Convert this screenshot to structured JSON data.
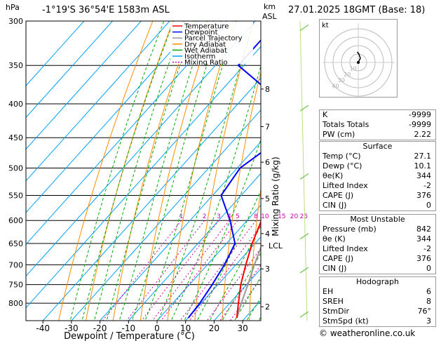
{
  "header": {
    "p_unit": "hPa",
    "location": "-1°19'S  36°54'E  1583m  ASL",
    "km_unit": "km",
    "asl": "ASL",
    "datetime": "27.01.2025  18GMT  (Base: 18)"
  },
  "legend": [
    {
      "label": "Temperature",
      "color": "#ff0000",
      "dash": ""
    },
    {
      "label": "Dewpoint",
      "color": "#0000ff",
      "dash": ""
    },
    {
      "label": "Parcel Trajectory",
      "color": "#999999",
      "dash": ""
    },
    {
      "label": "Dry Adiabat",
      "color": "#ff8c00",
      "dash": ""
    },
    {
      "label": "Wet Adiabat",
      "color": "#00aa00",
      "dash": ""
    },
    {
      "label": "Isotherm",
      "color": "#00a0ff",
      "dash": ""
    },
    {
      "label": "Mixing Ratio",
      "color": "#cc00aa",
      "dash": "2,2"
    }
  ],
  "chart_data": {
    "type": "skew-t log-p diagram",
    "xlabel": "Dewpoint / Temperature (°C)",
    "ylabel_left": "hPa",
    "ylabel_right": "Mixing Ratio (g/kg)",
    "x_ticks": [
      -40,
      -30,
      -20,
      -10,
      0,
      10,
      20,
      30
    ],
    "pressure_levels": [
      300,
      350,
      400,
      450,
      500,
      550,
      600,
      650,
      700,
      750,
      800
    ],
    "altitude_ticks": [
      {
        "km": "2",
        "p": 810
      },
      {
        "km": "3",
        "p": 710
      },
      {
        "km": "4",
        "p": 628
      },
      {
        "km": "5",
        "p": 556
      },
      {
        "km": "6",
        "p": 490
      },
      {
        "km": "7",
        "p": 433
      },
      {
        "km": "8",
        "p": 380
      }
    ],
    "lcl": {
      "label": "LCL",
      "p": 655
    },
    "mixing_ratio_labels": [
      "1",
      "2",
      "3",
      "4",
      "5",
      "8",
      "10",
      "15",
      "20",
      "25"
    ],
    "mixing_ratio_values": [
      1,
      2,
      3,
      4,
      5,
      8,
      10,
      15,
      20,
      25
    ],
    "temperature": [
      [
        842,
        27.1
      ],
      [
        800,
        23
      ],
      [
        750,
        18
      ],
      [
        700,
        13.5
      ],
      [
        650,
        9
      ],
      [
        600,
        5
      ],
      [
        550,
        0
      ],
      [
        500,
        -5
      ],
      [
        450,
        -10.5
      ],
      [
        400,
        -17
      ],
      [
        350,
        -26
      ],
      [
        300,
        -36
      ]
    ],
    "dewpoint": [
      [
        842,
        10.1
      ],
      [
        800,
        9.5
      ],
      [
        750,
        8
      ],
      [
        700,
        6
      ],
      [
        650,
        3
      ],
      [
        600,
        -6
      ],
      [
        550,
        -17
      ],
      [
        500,
        -19
      ],
      [
        450,
        -14
      ],
      [
        400,
        -24
      ],
      [
        350,
        -52
      ],
      [
        300,
        -52
      ]
    ],
    "parcel": [
      [
        842,
        27.1
      ],
      [
        800,
        24
      ],
      [
        750,
        20.5
      ],
      [
        700,
        16.5
      ],
      [
        655,
        13
      ],
      [
        600,
        7.5
      ],
      [
        550,
        2.5
      ],
      [
        500,
        -3
      ],
      [
        450,
        -9
      ],
      [
        400,
        -16
      ],
      [
        350,
        -24
      ],
      [
        300,
        -33
      ]
    ]
  },
  "hodograph": {
    "label": "kt",
    "ring_labels": [
      "10",
      "20",
      "30",
      "40"
    ],
    "trace": [
      [
        0,
        0
      ],
      [
        0.5,
        1
      ],
      [
        1,
        2
      ],
      [
        0.3,
        4
      ],
      [
        -0.5,
        5
      ]
    ]
  },
  "indices": [
    {
      "label": "K",
      "value": "-9999"
    },
    {
      "label": "Totals Totals",
      "value": "-9999"
    },
    {
      "label": "PW (cm)",
      "value": "2.22"
    }
  ],
  "surface": {
    "title": "Surface",
    "rows": [
      {
        "label": "Temp (°C)",
        "value": "27.1"
      },
      {
        "label": "Dewp (°C)",
        "value": "10.1"
      },
      {
        "label": "θe(K)",
        "value": "344"
      },
      {
        "label": "Lifted Index",
        "value": "-2"
      },
      {
        "label": "CAPE (J)",
        "value": "376"
      },
      {
        "label": "CIN (J)",
        "value": "0"
      }
    ]
  },
  "most_unstable": {
    "title": "Most Unstable",
    "rows": [
      {
        "label": "Pressure (mb)",
        "value": "842"
      },
      {
        "label": "θe (K)",
        "value": "344"
      },
      {
        "label": "Lifted Index",
        "value": "-2"
      },
      {
        "label": "CAPE (J)",
        "value": "376"
      },
      {
        "label": "CIN (J)",
        "value": "0"
      }
    ]
  },
  "hodograph_table": {
    "title": "Hodograph",
    "rows": [
      {
        "label": "EH",
        "value": "6"
      },
      {
        "label": "SREH",
        "value": "8"
      },
      {
        "label": "StmDir",
        "value": "76°"
      },
      {
        "label": "StmSpd (kt)",
        "value": "3"
      }
    ]
  },
  "copyright": "© weatheronline.co.uk"
}
